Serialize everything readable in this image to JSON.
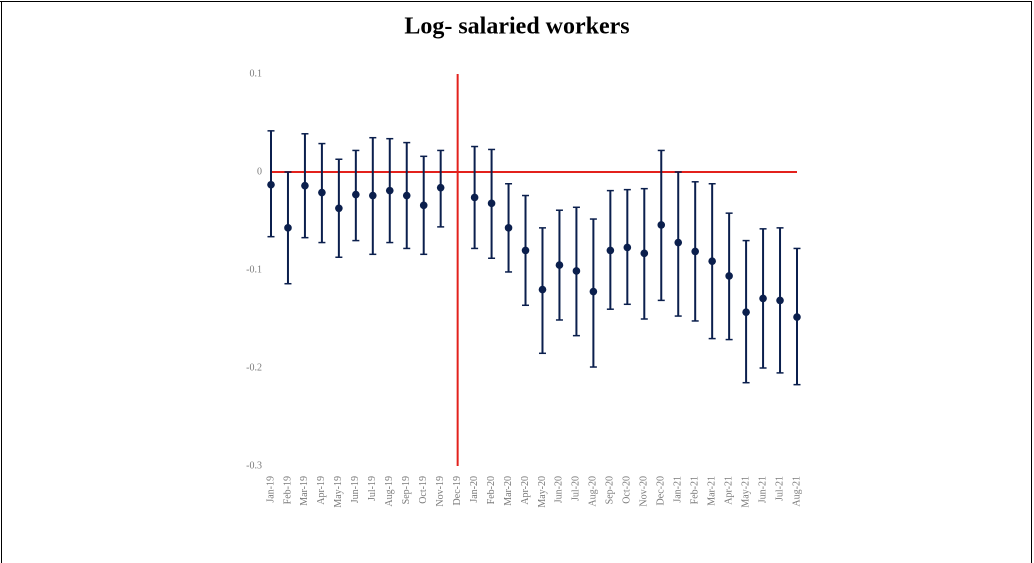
{
  "chart_data": {
    "type": "errorbar",
    "title": "Log- salaried workers",
    "categories": [
      "Jan-19",
      "Feb-19",
      "Mar-19",
      "Apr-19",
      "May-19",
      "Jun-19",
      "Jul-19",
      "Aug-19",
      "Sep-19",
      "Oct-19",
      "Nov-19",
      "Dec-19",
      "Jan-20",
      "Feb-20",
      "Mar-20",
      "Apr-20",
      "May-20",
      "Jun-20",
      "Jul-20",
      "Aug-20",
      "Sep-20",
      "Oct-20",
      "Nov-20",
      "Dec-20",
      "Jan-21",
      "Feb-21",
      "Mar-21",
      "Apr-21",
      "May-21",
      "Jun-21",
      "Jul-21",
      "Aug-21"
    ],
    "values": [
      -0.013,
      -0.057,
      -0.014,
      -0.021,
      -0.037,
      -0.023,
      -0.024,
      -0.019,
      -0.024,
      -0.034,
      -0.016,
      null,
      -0.026,
      -0.032,
      -0.057,
      -0.08,
      -0.12,
      -0.095,
      -0.101,
      -0.122,
      -0.08,
      -0.077,
      -0.083,
      -0.054,
      -0.072,
      -0.081,
      -0.091,
      -0.106,
      -0.143,
      -0.129,
      -0.131,
      -0.148
    ],
    "lower": [
      -0.066,
      -0.114,
      -0.067,
      -0.072,
      -0.087,
      -0.07,
      -0.084,
      -0.072,
      -0.078,
      -0.084,
      -0.056,
      null,
      -0.078,
      -0.088,
      -0.102,
      -0.136,
      -0.185,
      -0.151,
      -0.167,
      -0.199,
      -0.14,
      -0.135,
      -0.15,
      -0.131,
      -0.147,
      -0.152,
      -0.17,
      -0.171,
      -0.215,
      -0.2,
      -0.205,
      -0.217
    ],
    "upper": [
      0.042,
      0.0,
      0.039,
      0.029,
      0.013,
      0.022,
      0.035,
      0.034,
      0.03,
      0.016,
      0.022,
      null,
      0.026,
      0.023,
      -0.012,
      -0.024,
      -0.057,
      -0.039,
      -0.036,
      -0.048,
      -0.019,
      -0.018,
      -0.017,
      0.022,
      0.0,
      -0.01,
      -0.012,
      -0.042,
      -0.07,
      -0.058,
      -0.057,
      -0.078
    ],
    "color": "#0b1f4d",
    "reference_color": "#e3211c",
    "hline": 0,
    "vline": "Dec-19",
    "ylim": [
      -0.3,
      0.1
    ],
    "yticks": [
      0.1,
      0,
      -0.1,
      -0.2,
      -0.3
    ]
  }
}
